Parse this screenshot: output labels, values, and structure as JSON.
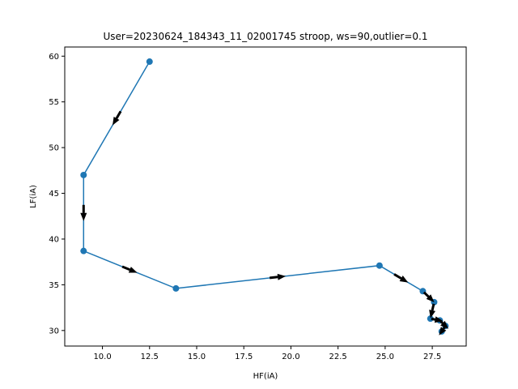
{
  "chart_data": {
    "type": "line",
    "title": "User=20230624_184343_11_02001745 stroop, ws=90,outlier=0.1",
    "xlabel": "HF(iA)",
    "ylabel": "LF(iA)",
    "xlim": [
      8.0,
      29.3
    ],
    "ylim": [
      28.3,
      61.0
    ],
    "xticks": [
      "10.0",
      "12.5",
      "15.0",
      "17.5",
      "20.0",
      "22.5",
      "25.0",
      "27.5"
    ],
    "yticks": [
      "30",
      "35",
      "40",
      "45",
      "50",
      "55",
      "60"
    ],
    "grid": false,
    "line_color": "#1f77b4",
    "arrow_color": "#000000",
    "series": [
      {
        "x": [
          12.5,
          9.0,
          9.0,
          13.9,
          24.7,
          27.0,
          27.6,
          27.4,
          27.9,
          28.2,
          28.0
        ],
        "y": [
          59.4,
          47.0,
          38.7,
          34.6,
          37.1,
          34.3,
          33.1,
          31.3,
          31.1,
          30.5,
          29.9
        ]
      }
    ]
  }
}
